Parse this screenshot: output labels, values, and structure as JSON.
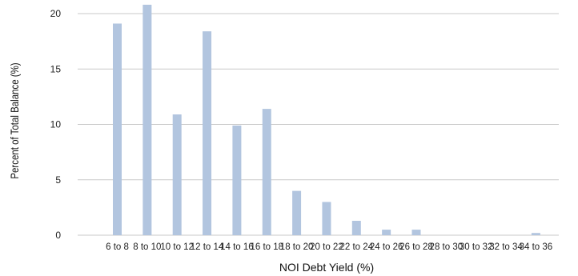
{
  "chart_data": {
    "type": "bar",
    "title": "",
    "xlabel": "NOI Debt Yield (%)",
    "ylabel": "Percent of Total Balance (%)",
    "categories": [
      "6 to 8",
      "8 to 10",
      "10 to 12",
      "12 to 14",
      "14 to 16",
      "16 to 18",
      "18 to 20",
      "20 to 22",
      "22 to 24",
      "24 to 26",
      "26 to 28",
      "28 to 30",
      "30 to 32",
      "32 to 34",
      "34 to 36"
    ],
    "values": [
      19.1,
      20.8,
      10.9,
      18.4,
      9.9,
      11.4,
      4.0,
      3.0,
      1.3,
      0.5,
      0.5,
      0,
      0,
      0,
      0.2
    ],
    "ylim": [
      0,
      21
    ],
    "yticks": [
      "0",
      "5",
      "10",
      "15",
      "20"
    ],
    "grid": "horizontal",
    "colors": {
      "bar": "#b2c5df",
      "grid": "#c9c9c9"
    }
  }
}
